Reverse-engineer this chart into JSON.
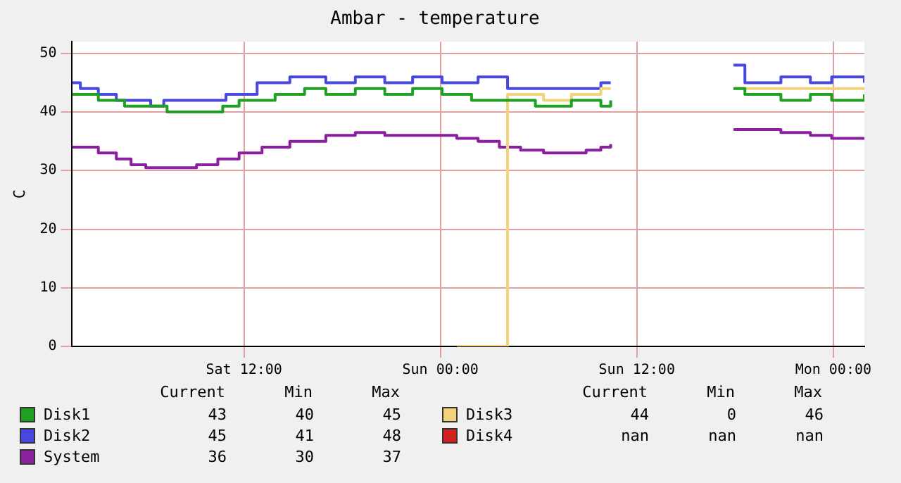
{
  "chart_data": {
    "type": "step",
    "title": "Ambar - temperature",
    "ylabel": "C",
    "xlim": [
      "--06-01T01:30",
      "--06-03T01:54"
    ],
    "xticks": [
      {
        "value": "--06-01T12:00",
        "label": "Sat 12:00"
      },
      {
        "value": "--06-02T00:00",
        "label": "Sun 00:00"
      },
      {
        "value": "--06-02T12:00",
        "label": "Sun 12:00"
      },
      {
        "value": "--06-03T00:00",
        "label": "Mon 00:00"
      }
    ],
    "ylim": [
      0,
      52
    ],
    "yticks": [
      0,
      10,
      20,
      30,
      40,
      50
    ],
    "grid": true,
    "legend": "bottom",
    "marker": "none",
    "line_style": "solid",
    "series": [
      {
        "name": "Disk1",
        "color": "#20a020",
        "x": [
          "--06-01T01:30",
          "--06-01T03:06",
          "--06-01T04:42",
          "--06-01T07:18",
          "--06-01T10:42",
          "--06-01T11:42",
          "--06-01T13:54",
          "--06-01T15:42",
          "--06-01T17:00",
          "--06-01T18:48",
          "--06-01T20:36",
          "--06-01T22:18",
          "--06-02T00:06",
          "--06-02T01:54",
          "--06-02T04:06",
          "--06-02T05:48",
          "--06-02T08:00",
          "--06-02T09:48",
          "--06-02T10:24",
          "--06-02T11:00",
          "--06-02T17:54",
          "--06-02T18:36",
          "--06-02T20:48",
          "--06-02T22:36",
          "--06-02T23:54",
          "--06-03T01:54"
        ],
        "values": [
          43,
          42,
          41,
          40,
          41,
          42,
          43,
          44,
          43,
          44,
          43,
          44,
          43,
          42,
          42,
          41,
          42,
          41,
          42,
          null,
          44,
          43,
          42,
          43,
          42,
          43
        ]
      },
      {
        "name": "Disk3",
        "color": "#f2d27a",
        "x": [
          "--06-02T01:00",
          "--06-02T04:06",
          "--06-02T04:54",
          "--06-02T06:18",
          "--06-02T08:00",
          "--06-02T09:48",
          "--06-02T10:24",
          "--06-02T11:00",
          "--06-02T17:54",
          "--06-02T18:36",
          "--06-03T01:54"
        ],
        "values": [
          0,
          43,
          43,
          42,
          43,
          44,
          44,
          null,
          44,
          44,
          44
        ]
      },
      {
        "name": "Disk2",
        "color": "#4848e0",
        "x": [
          "--06-01T01:30",
          "--06-01T02:00",
          "--06-01T03:06",
          "--06-01T04:12",
          "--06-01T06:18",
          "--06-01T07:06",
          "--06-01T09:06",
          "--06-01T10:54",
          "--06-01T12:48",
          "--06-01T14:48",
          "--06-01T17:00",
          "--06-01T18:48",
          "--06-01T20:36",
          "--06-01T22:18",
          "--06-02T00:06",
          "--06-02T02:18",
          "--06-02T04:06",
          "--06-02T04:54",
          "--06-02T06:18",
          "--06-02T08:00",
          "--06-02T09:48",
          "--06-02T10:24",
          "--06-02T11:00",
          "--06-02T17:54",
          "--06-02T18:36",
          "--06-02T20:48",
          "--06-02T22:36",
          "--06-02T23:54",
          "--06-03T01:54"
        ],
        "values": [
          45,
          44,
          43,
          42,
          41,
          42,
          42,
          43,
          45,
          46,
          45,
          46,
          45,
          46,
          45,
          46,
          44,
          44,
          44,
          44,
          45,
          45,
          null,
          48,
          45,
          46,
          45,
          46,
          45
        ]
      },
      {
        "name": "Disk4",
        "color": "#d02020"
      },
      {
        "name": "System",
        "color": "#8a1fa0",
        "x": [
          "--06-01T01:30",
          "--06-01T03:06",
          "--06-01T04:12",
          "--06-01T05:06",
          "--06-01T06:00",
          "--06-01T07:48",
          "--06-01T09:06",
          "--06-01T10:24",
          "--06-01T11:42",
          "--06-01T13:06",
          "--06-01T14:48",
          "--06-01T17:00",
          "--06-01T18:48",
          "--06-01T20:36",
          "--06-01T22:18",
          "--06-02T01:00",
          "--06-02T02:18",
          "--06-02T03:36",
          "--06-02T04:54",
          "--06-02T06:18",
          "--06-02T08:54",
          "--06-02T09:48",
          "--06-02T10:24",
          "--06-02T11:00",
          "--06-02T17:54",
          "--06-02T19:30",
          "--06-02T20:48",
          "--06-02T22:36",
          "--06-02T23:54",
          "--06-03T01:54"
        ],
        "values": [
          34,
          33,
          32,
          31,
          30.5,
          30.5,
          31,
          32,
          33,
          34,
          35,
          36,
          36.5,
          36,
          36,
          35.5,
          35,
          34,
          33.5,
          33,
          33.5,
          34,
          34.5,
          null,
          37,
          37,
          36.5,
          36,
          35.5,
          35.5
        ]
      }
    ],
    "annotations": [
      "Current",
      "Min",
      "Max",
      "43",
      "40",
      "45",
      "44",
      "0",
      "46",
      "45",
      "41",
      "48",
      "nan",
      "nan",
      "nan",
      "36",
      "30",
      "37"
    ]
  }
}
